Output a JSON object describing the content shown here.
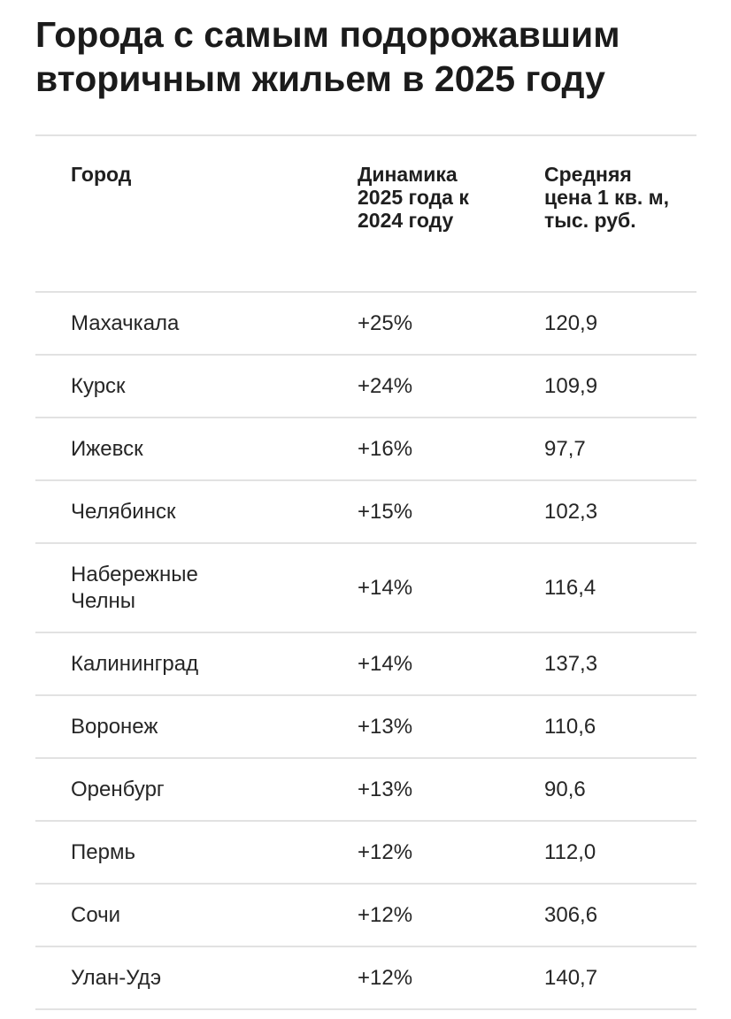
{
  "title": "Города с самым подорожавшим вторичным жильем в 2025 году",
  "table": {
    "headers": {
      "city": "Город",
      "change": "Динамика 2025 года к 2024 году",
      "price": "Средняя цена 1 кв. м, тыс. руб."
    },
    "rows": [
      {
        "city": "Махачкала",
        "change": "+25%",
        "price": "120,9"
      },
      {
        "city": "Курск",
        "change": "+24%",
        "price": "109,9"
      },
      {
        "city": "Ижевск",
        "change": "+16%",
        "price": "97,7"
      },
      {
        "city": "Челябинск",
        "change": "+15%",
        "price": "102,3"
      },
      {
        "city": "Набережные Челны",
        "change": "+14%",
        "price": "116,4"
      },
      {
        "city": "Калининград",
        "change": "+14%",
        "price": "137,3"
      },
      {
        "city": "Воронеж",
        "change": "+13%",
        "price": "110,6"
      },
      {
        "city": "Оренбург",
        "change": "+13%",
        "price": "90,6"
      },
      {
        "city": "Пермь",
        "change": "+12%",
        "price": "112,0"
      },
      {
        "city": "Сочи",
        "change": "+12%",
        "price": "306,6"
      },
      {
        "city": "Улан-Удэ",
        "change": "+12%",
        "price": "140,7"
      }
    ]
  }
}
